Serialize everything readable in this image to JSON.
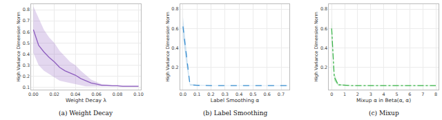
{
  "chart_data": [
    {
      "type": "line",
      "title": "(a) Weight Decay",
      "x_label": "Weight Decay λ",
      "y_label": "High Variance Dimension Norm",
      "x": [
        0,
        0.005,
        0.01,
        0.015,
        0.02,
        0.025,
        0.03,
        0.035,
        0.04,
        0.045,
        0.05,
        0.055,
        0.06,
        0.065,
        0.07,
        0.075,
        0.08,
        0.085,
        0.09,
        0.095,
        0.1
      ],
      "series": [
        {
          "color": "#8e5fbf",
          "line_style": "solid",
          "values": [
            0.62,
            0.48,
            0.42,
            0.37,
            0.33,
            0.28,
            0.25,
            0.23,
            0.21,
            0.18,
            0.16,
            0.14,
            0.13,
            0.12,
            0.12,
            0.115,
            0.115,
            0.11,
            0.11,
            0.11,
            0.11
          ],
          "upper": [
            0.83,
            0.72,
            0.62,
            0.55,
            0.5,
            0.43,
            0.38,
            0.33,
            0.3,
            0.25,
            0.21,
            0.17,
            0.15,
            0.13,
            0.125,
            0.12,
            0.12,
            0.115,
            0.115,
            0.115,
            0.115
          ],
          "lower": [
            0.41,
            0.3,
            0.25,
            0.22,
            0.19,
            0.16,
            0.15,
            0.14,
            0.13,
            0.12,
            0.11,
            0.11,
            0.11,
            0.11,
            0.11,
            0.11,
            0.11,
            0.105,
            0.105,
            0.105,
            0.105
          ]
        }
      ],
      "xlim": [
        -0.002,
        0.102
      ],
      "xticks": [
        {
          "value": 0,
          "label": "0.00"
        },
        {
          "value": 0.02,
          "label": "0.02"
        },
        {
          "value": 0.04,
          "label": "0.04"
        },
        {
          "value": 0.06,
          "label": "0.06"
        },
        {
          "value": 0.08,
          "label": "0.08"
        },
        {
          "value": 0.1,
          "label": "0.10"
        }
      ],
      "ylim": [
        0.08,
        0.85
      ],
      "yticks": [
        0.1,
        0.2,
        0.3,
        0.4,
        0.5,
        0.6,
        0.7,
        0.8
      ],
      "grid": true
    },
    {
      "type": "line",
      "title": "(b) Label Smoothing",
      "x_label": "Label Smoothing α",
      "y_label": "High Variance Dimension Norm",
      "x": [
        0,
        0.025,
        0.05,
        0.1,
        0.15,
        0.2,
        0.25,
        0.3,
        0.35,
        0.4,
        0.45,
        0.5,
        0.55,
        0.6,
        0.65,
        0.7,
        0.75
      ],
      "series": [
        {
          "color": "#3b8fd0",
          "line_style": "dashed",
          "values": [
            0.62,
            0.3,
            0.02,
            0.015,
            0.012,
            0.012,
            0.012,
            0.012,
            0.012,
            0.012,
            0.012,
            0.012,
            0.012,
            0.012,
            0.012,
            0.012,
            0.012
          ],
          "upper": [
            0.72,
            0.38,
            0.03,
            0.02,
            0.015,
            0.015,
            0.015,
            0.015,
            0.015,
            0.015,
            0.015,
            0.015,
            0.015,
            0.015,
            0.015,
            0.015,
            0.015
          ],
          "lower": [
            0.52,
            0.22,
            0.01,
            0.01,
            0.009,
            0.009,
            0.009,
            0.009,
            0.009,
            0.009,
            0.009,
            0.009,
            0.009,
            0.009,
            0.009,
            0.009,
            0.009
          ]
        }
      ],
      "xlim": [
        -0.02,
        0.76
      ],
      "xticks": [
        {
          "value": 0,
          "label": "0.0"
        },
        0.1,
        0.2,
        0.3,
        0.4,
        0.5,
        0.6,
        0.7
      ],
      "ylim": [
        -0.03,
        0.85
      ],
      "yticks": [
        0.2,
        0.4,
        0.6,
        0.8
      ],
      "grid": true
    },
    {
      "type": "line",
      "title": "(c) Mixup",
      "x_label": "Mixup α in Beta(α, α)",
      "y_label": "High Variance Dimension Norm",
      "x": [
        0,
        0.1,
        0.2,
        0.5,
        1,
        1.5,
        2,
        2.5,
        3,
        3.5,
        4,
        4.5,
        5,
        5.5,
        6,
        6.5,
        7,
        7.5,
        8
      ],
      "series": [
        {
          "color": "#3cb44b",
          "line_style": "dashdot",
          "values": [
            0.6,
            0.35,
            0.1,
            0.02,
            0.015,
            0.012,
            0.012,
            0.012,
            0.012,
            0.012,
            0.012,
            0.012,
            0.012,
            0.012,
            0.012,
            0.012,
            0.012,
            0.012,
            0.012
          ],
          "upper": [
            0.7,
            0.43,
            0.14,
            0.03,
            0.02,
            0.015,
            0.015,
            0.015,
            0.015,
            0.015,
            0.015,
            0.015,
            0.015,
            0.015,
            0.015,
            0.015,
            0.015,
            0.015,
            0.015
          ],
          "lower": [
            0.5,
            0.27,
            0.06,
            0.01,
            0.01,
            0.009,
            0.009,
            0.009,
            0.009,
            0.009,
            0.009,
            0.009,
            0.009,
            0.009,
            0.009,
            0.009,
            0.009,
            0.009,
            0.009
          ]
        }
      ],
      "xlim": [
        -0.2,
        8.2
      ],
      "xticks": [
        0,
        1,
        2,
        3,
        4,
        5,
        6,
        7,
        8
      ],
      "ylim": [
        -0.03,
        0.85
      ],
      "yticks": [
        0.2,
        0.4,
        0.6,
        0.8
      ],
      "grid": true
    }
  ]
}
